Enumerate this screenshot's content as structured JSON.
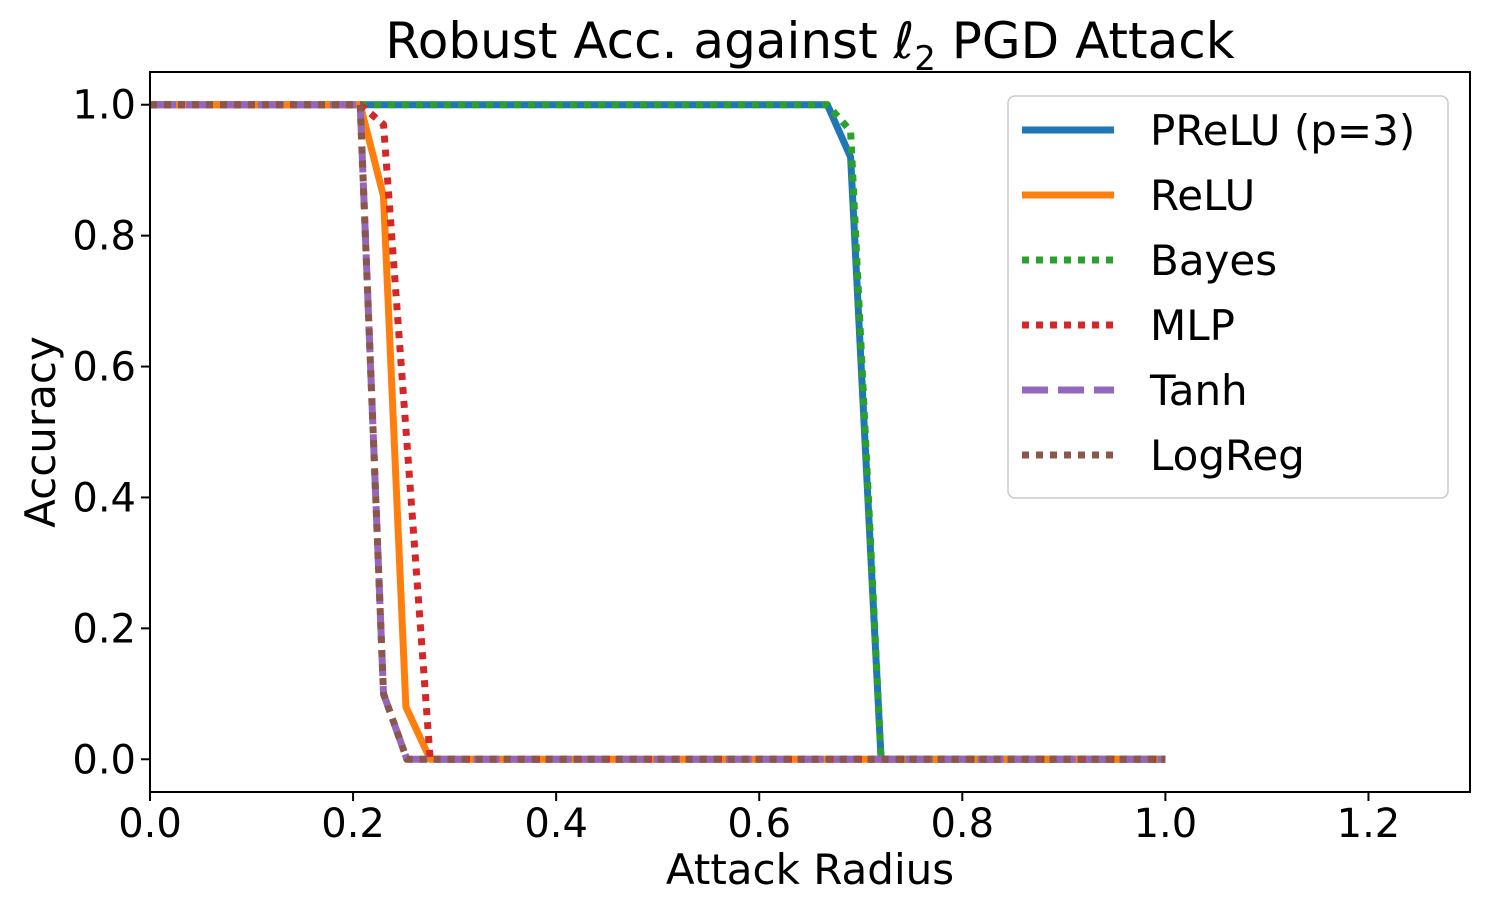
{
  "chart_data": {
    "type": "line",
    "title": "Robust Acc. against ℓ₂ PGD Attack",
    "xlabel": "Attack Radius",
    "ylabel": "Accuracy",
    "xlim": [
      0.0,
      1.3
    ],
    "ylim": [
      -0.05,
      1.05
    ],
    "xticks": [
      0.0,
      0.2,
      0.4,
      0.6,
      0.8,
      1.0,
      1.2
    ],
    "xtick_labels": [
      "0.0",
      "0.2",
      "0.4",
      "0.6",
      "0.8",
      "1.0",
      "1.2"
    ],
    "yticks": [
      0.0,
      0.2,
      0.4,
      0.6,
      0.8,
      1.0
    ],
    "ytick_labels": [
      "0.0",
      "0.2",
      "0.4",
      "0.6",
      "0.8",
      "1.0"
    ],
    "grid": false,
    "legend_position": "top-right",
    "series": [
      {
        "name": "PReLU (p=3)",
        "color": "#1f77b4",
        "style": "solid",
        "x": [
          0.0,
          0.2,
          0.4,
          0.6,
          0.667,
          0.69,
          0.72,
          1.0
        ],
        "y": [
          1.0,
          1.0,
          1.0,
          1.0,
          1.0,
          0.92,
          0.0,
          0.0
        ]
      },
      {
        "name": "ReLU",
        "color": "#ff7f0e",
        "style": "solid",
        "x": [
          0.0,
          0.207,
          0.23,
          0.252,
          0.276,
          0.5,
          1.0
        ],
        "y": [
          1.0,
          1.0,
          0.86,
          0.08,
          0.0,
          0.0,
          0.0
        ]
      },
      {
        "name": "Bayes",
        "color": "#2ca02c",
        "style": "dotted",
        "x": [
          0.0,
          0.2,
          0.4,
          0.6,
          0.667,
          0.69,
          0.72,
          1.0
        ],
        "y": [
          1.0,
          1.0,
          1.0,
          1.0,
          1.0,
          0.96,
          0.0,
          0.0
        ]
      },
      {
        "name": "MLP",
        "color": "#d62728",
        "style": "dotted",
        "x": [
          0.0,
          0.207,
          0.23,
          0.276,
          0.5,
          1.0
        ],
        "y": [
          1.0,
          1.0,
          0.97,
          0.0,
          0.0,
          0.0
        ]
      },
      {
        "name": "Tanh",
        "color": "#9467bd",
        "style": "dashed",
        "x": [
          0.0,
          0.207,
          0.23,
          0.253,
          0.276,
          0.5,
          1.0
        ],
        "y": [
          1.0,
          1.0,
          0.1,
          0.0,
          0.0,
          0.0,
          0.0
        ]
      },
      {
        "name": "LogReg",
        "color": "#8c564b",
        "style": "dotted",
        "x": [
          0.0,
          0.207,
          0.23,
          0.253,
          0.276,
          0.5,
          1.0
        ],
        "y": [
          1.0,
          1.0,
          0.1,
          0.0,
          0.0,
          0.0,
          0.0
        ]
      }
    ]
  }
}
